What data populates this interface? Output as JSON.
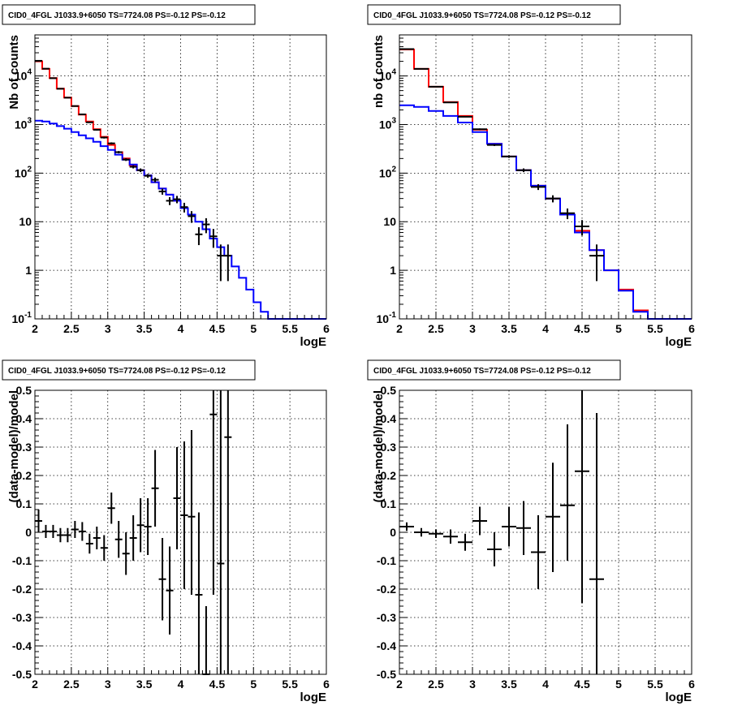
{
  "chart_data": [
    {
      "type": "line",
      "title": "CID0_4FGL J1033.9+6050 TS=7724.08 PS=-0.12 PS=-0.12",
      "xlabel": "logE",
      "ylabel": "Nb of counts",
      "xlim": [
        2,
        6
      ],
      "ylim": [
        0.1,
        70000
      ],
      "yscale": "log",
      "grid": true,
      "x_ticks": [
        "2",
        "2.5",
        "3",
        "3.5",
        "4",
        "4.5",
        "5",
        "5.5",
        "6"
      ],
      "y_ticks": [
        {
          "label": "10^-1",
          "base": "10",
          "exp": "-1",
          "v": 0.1
        },
        {
          "label": "1",
          "base": "1",
          "exp": "",
          "v": 1
        },
        {
          "label": "10",
          "base": "10",
          "exp": "",
          "v": 10
        },
        {
          "label": "10^2",
          "base": "10",
          "exp": "2",
          "v": 100
        },
        {
          "label": "10^3",
          "base": "10",
          "exp": "3",
          "v": 1000
        },
        {
          "label": "10^4",
          "base": "10",
          "exp": "4",
          "v": 10000
        }
      ],
      "series": [
        {
          "color": "#ff0000",
          "kind": "step",
          "bin_edges": [
            2.0,
            2.1,
            2.2,
            2.3,
            2.4,
            2.5,
            2.6,
            2.7,
            2.8,
            2.9,
            3.0,
            3.1,
            3.2,
            3.3,
            3.4,
            3.5,
            3.6,
            3.7,
            3.8,
            3.9,
            4.0
          ],
          "values": [
            20000,
            14000,
            9000,
            5500,
            3600,
            2400,
            1600,
            1150,
            800,
            560,
            380,
            270,
            200,
            145,
            115,
            90,
            65,
            48,
            36,
            27
          ]
        },
        {
          "color": "#0000ff",
          "kind": "step",
          "bin_edges": [
            2.0,
            2.1,
            2.2,
            2.3,
            2.4,
            2.5,
            2.6,
            2.7,
            2.8,
            2.9,
            3.0,
            3.1,
            3.2,
            3.3,
            3.4,
            3.5,
            3.6,
            3.7,
            3.8,
            3.9,
            4.0,
            4.1,
            4.2,
            4.3,
            4.4,
            4.5,
            4.6,
            4.7,
            4.8,
            4.9,
            5.0,
            5.1,
            5.2,
            5.3,
            5.4,
            5.5,
            5.6,
            5.7,
            5.8,
            5.9,
            6.0
          ],
          "values": [
            1200,
            1150,
            1050,
            930,
            820,
            700,
            600,
            520,
            440,
            360,
            300,
            240,
            190,
            150,
            115,
            90,
            65,
            48,
            36,
            27,
            19,
            14,
            10,
            7,
            4.5,
            3,
            2,
            1.2,
            0.7,
            0.4,
            0.22,
            0.14,
            0.1,
            0.1,
            0.1,
            0.1,
            0.1,
            0.1,
            0.1,
            0.1
          ]
        },
        {
          "color": "#000000",
          "kind": "points",
          "x": [
            2.05,
            2.15,
            2.25,
            2.35,
            2.45,
            2.55,
            2.65,
            2.75,
            2.85,
            2.95,
            3.05,
            3.15,
            3.25,
            3.35,
            3.45,
            3.55,
            3.65,
            3.75,
            3.85,
            3.95,
            4.05,
            4.15,
            4.25,
            4.35,
            4.45,
            4.55,
            4.65
          ],
          "y": [
            20500,
            14100,
            9000,
            5450,
            3570,
            2400,
            1620,
            1110,
            780,
            540,
            410,
            270,
            190,
            135,
            115,
            88,
            73,
            42,
            27,
            29,
            20,
            13,
            5.5,
            8.8,
            5.0,
            2.0,
            2.0
          ],
          "ylow": [
            20300,
            13980,
            8900,
            5380,
            3510,
            2350,
            1580,
            1080,
            750,
            515,
            390,
            255,
            178,
            125,
            105,
            80,
            65,
            36,
            22,
            24,
            15.5,
            9.5,
            3.3,
            5.8,
            2.9,
            0.6,
            0.6
          ],
          "yhigh": [
            20700,
            14220,
            9100,
            5520,
            3630,
            2450,
            1660,
            1140,
            810,
            565,
            430,
            285,
            202,
            145,
            125,
            96,
            81,
            48,
            32,
            34,
            24.5,
            16.5,
            7.7,
            11.8,
            7.1,
            3.4,
            3.4
          ]
        }
      ]
    },
    {
      "type": "line",
      "title": "CID0_4FGL J1033.9+6050 TS=7724.08 PS=-0.12 PS=-0.12",
      "xlabel": "logE",
      "ylabel": "nb of counts",
      "xlim": [
        2,
        6
      ],
      "ylim": [
        0.1,
        70000
      ],
      "yscale": "log",
      "grid": true,
      "x_ticks": [
        "2",
        "2.5",
        "3",
        "3.5",
        "4",
        "4.5",
        "5",
        "5.5",
        "6"
      ],
      "y_ticks": [
        {
          "label": "10^-1",
          "base": "10",
          "exp": "-1",
          "v": 0.1
        },
        {
          "label": "1",
          "base": "1",
          "exp": "",
          "v": 1
        },
        {
          "label": "10",
          "base": "10",
          "exp": "",
          "v": 10
        },
        {
          "label": "10^2",
          "base": "10",
          "exp": "2",
          "v": 100
        },
        {
          "label": "10^3",
          "base": "10",
          "exp": "3",
          "v": 1000
        },
        {
          "label": "10^4",
          "base": "10",
          "exp": "4",
          "v": 10000
        }
      ],
      "series": [
        {
          "color": "#ff0000",
          "kind": "step",
          "bin_edges": [
            2.0,
            2.2,
            2.4,
            2.6,
            2.8,
            3.0,
            3.2,
            3.4,
            3.6,
            3.8,
            4.0,
            4.2,
            4.4,
            4.6,
            4.8,
            5.0,
            5.2,
            5.4,
            5.6,
            5.8,
            6.0
          ],
          "values": [
            35000,
            14000,
            6000,
            2900,
            1500,
            780,
            400,
            220,
            115,
            55,
            30,
            14,
            6.5,
            2.6,
            1.0,
            0.4,
            0.15,
            0.1,
            0.1,
            0.1
          ]
        },
        {
          "color": "#0000ff",
          "kind": "step",
          "bin_edges": [
            2.0,
            2.2,
            2.4,
            2.6,
            2.8,
            3.0,
            3.2,
            3.4,
            3.6,
            3.8,
            4.0,
            4.2,
            4.4,
            4.6,
            4.8,
            5.0,
            5.2,
            5.4,
            5.6,
            5.8,
            6.0
          ],
          "values": [
            2500,
            2300,
            1900,
            1500,
            1100,
            700,
            400,
            220,
            115,
            55,
            30,
            14,
            6,
            2.6,
            1.0,
            0.38,
            0.14,
            0.1,
            0.1,
            0.1
          ]
        },
        {
          "color": "#000000",
          "kind": "points",
          "x": [
            2.1,
            2.3,
            2.5,
            2.7,
            2.9,
            3.1,
            3.3,
            3.5,
            3.7,
            3.9,
            4.1,
            4.3,
            4.5,
            4.7
          ],
          "y": [
            35700,
            14000,
            6000,
            2850,
            1450,
            800,
            380,
            220,
            115,
            52,
            30,
            15,
            8.0,
            2.0
          ],
          "ylow": [
            35500,
            13880,
            5920,
            2800,
            1410,
            770,
            362,
            206,
            105,
            45,
            25,
            11.3,
            5.2,
            0.6
          ],
          "yhigh": [
            35900,
            14120,
            6080,
            2900,
            1490,
            830,
            398,
            234,
            125,
            59,
            35,
            18.7,
            10.8,
            3.4
          ]
        }
      ]
    },
    {
      "type": "scatter",
      "title": "CID0_4FGL J1033.9+6050 TS=7724.08 PS=-0.12 PS=-0.12",
      "xlabel": "logE",
      "ylabel": "(data-model)/model",
      "xlim": [
        2,
        6
      ],
      "ylim": [
        -0.5,
        0.5
      ],
      "grid": true,
      "x_ticks": [
        "2",
        "2.5",
        "3",
        "3.5",
        "4",
        "4.5",
        "5",
        "5.5",
        "6"
      ],
      "y_ticks": [
        "-0.5",
        "-0.4",
        "-0.3",
        "-0.2",
        "-0.1",
        "0",
        "0.1",
        "0.2",
        "0.3",
        "0.4",
        "0.5"
      ],
      "series": [
        {
          "color": "#000000",
          "kind": "points",
          "x": [
            2.05,
            2.15,
            2.25,
            2.35,
            2.45,
            2.55,
            2.65,
            2.75,
            2.85,
            2.95,
            3.05,
            3.15,
            3.25,
            3.35,
            3.45,
            3.55,
            3.65,
            3.75,
            3.85,
            3.95,
            4.05,
            4.15,
            4.25,
            4.35,
            4.45,
            4.55,
            4.65
          ],
          "y": [
            0.04,
            0.003,
            0.003,
            -0.01,
            -0.01,
            0.01,
            0.003,
            -0.04,
            -0.02,
            -0.055,
            0.085,
            -0.025,
            -0.075,
            -0.02,
            0.025,
            0.02,
            0.155,
            -0.165,
            -0.205,
            0.12,
            0.06,
            0.055,
            -0.22,
            -0.5,
            0.415,
            -0.11,
            0.335
          ],
          "ylow": [
            0.0,
            -0.02,
            -0.02,
            -0.035,
            -0.035,
            -0.02,
            -0.03,
            -0.075,
            -0.06,
            -0.1,
            0.03,
            -0.09,
            -0.15,
            -0.1,
            -0.07,
            -0.08,
            0.02,
            -0.31,
            -0.36,
            -0.06,
            -0.2,
            -0.22,
            -0.5,
            -0.5,
            -0.22,
            -0.5,
            -0.5
          ],
          "yhigh": [
            0.08,
            0.026,
            0.026,
            0.015,
            0.015,
            0.04,
            0.036,
            -0.005,
            0.02,
            -0.01,
            0.14,
            0.04,
            0.0,
            0.06,
            0.12,
            0.12,
            0.29,
            -0.02,
            -0.05,
            0.3,
            0.32,
            0.36,
            0.07,
            -0.26,
            0.5,
            0.5,
            0.5
          ]
        }
      ]
    },
    {
      "type": "scatter",
      "title": "CID0_4FGL J1033.9+6050 TS=7724.08 PS=-0.12 PS=-0.12",
      "xlabel": "logE",
      "ylabel": "(data-model)/model",
      "xlim": [
        2,
        6
      ],
      "ylim": [
        -0.5,
        0.5
      ],
      "grid": true,
      "x_ticks": [
        "2",
        "2.5",
        "3",
        "3.5",
        "4",
        "4.5",
        "5",
        "5.5",
        "6"
      ],
      "y_ticks": [
        "-0.5",
        "-0.4",
        "-0.3",
        "-0.2",
        "-0.1",
        "0",
        "0.1",
        "0.2",
        "0.3",
        "0.4",
        "0.5"
      ],
      "series": [
        {
          "color": "#000000",
          "kind": "points",
          "x": [
            2.1,
            2.3,
            2.5,
            2.7,
            2.9,
            3.1,
            3.3,
            3.5,
            3.7,
            3.9,
            4.1,
            4.3,
            4.5,
            4.7
          ],
          "y": [
            0.02,
            0.0,
            -0.005,
            -0.015,
            -0.035,
            0.04,
            -0.06,
            0.02,
            0.015,
            -0.07,
            0.055,
            0.095,
            0.215,
            -0.165
          ],
          "ylow": [
            0.005,
            -0.015,
            -0.02,
            -0.04,
            -0.065,
            -0.01,
            -0.12,
            -0.05,
            -0.08,
            -0.2,
            -0.14,
            -0.1,
            -0.25,
            -0.5
          ],
          "yhigh": [
            0.035,
            0.015,
            0.01,
            0.01,
            -0.005,
            0.09,
            0.0,
            0.09,
            0.11,
            0.06,
            0.245,
            0.38,
            0.5,
            0.42
          ]
        }
      ]
    }
  ]
}
